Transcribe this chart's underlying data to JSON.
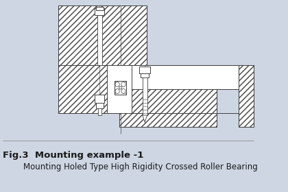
{
  "bg_color": "#cdd6e2",
  "line_color": "#404040",
  "white": "#ffffff",
  "title_line1": "Fig.3  Mounting example -1",
  "title_line2": "Mounting Holed Type High Rigidity Crossed Roller Bearing",
  "title1_fontsize": 9.5,
  "title2_fontsize": 8.5
}
